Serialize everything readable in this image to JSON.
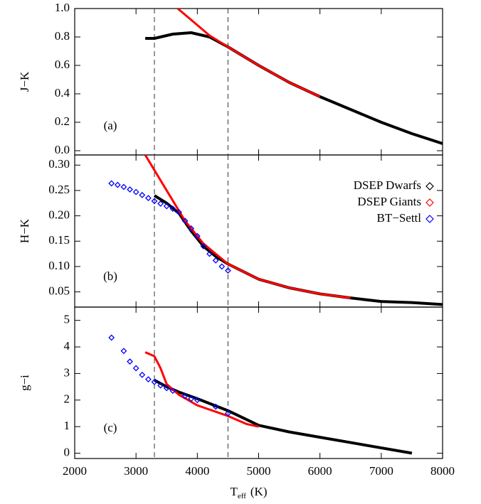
{
  "chart_data": [
    {
      "type": "line",
      "panel_label": "(a)",
      "ylabel": "J−K",
      "xlim": [
        2000,
        8000
      ],
      "ylim": [
        -0.03,
        1.0
      ],
      "yticks": [
        {
          "value": 0,
          "label": "0.0"
        },
        {
          "value": 0.2,
          "label": "0.2"
        },
        {
          "value": 0.4,
          "label": "0.4"
        },
        {
          "value": 0.6,
          "label": "0.6"
        },
        {
          "value": 0.8,
          "label": "0.8"
        },
        {
          "value": 1.0,
          "label": "1.0"
        }
      ],
      "vlines": [
        3300,
        4500
      ],
      "series": [
        {
          "color": "#000000",
          "mode": "line",
          "x": [
            3150,
            3300,
            3400,
            3600,
            3900,
            4200,
            4500,
            5000,
            5500,
            6000,
            6500,
            7000,
            7500,
            8000
          ],
          "values": [
            0.79,
            0.79,
            0.8,
            0.82,
            0.83,
            0.8,
            0.73,
            0.6,
            0.48,
            0.38,
            0.29,
            0.2,
            0.12,
            0.05
          ]
        },
        {
          "color": "#ff0000",
          "mode": "line",
          "x": [
            3680,
            3900,
            4200,
            4500,
            5000,
            5500,
            6000
          ],
          "values": [
            1.0,
            0.92,
            0.81,
            0.73,
            0.6,
            0.48,
            0.38
          ]
        }
      ]
    },
    {
      "type": "line",
      "panel_label": "(b)",
      "ylabel": "H−K",
      "xlim": [
        2000,
        8000
      ],
      "ylim": [
        0.02,
        0.32
      ],
      "yticks": [
        0.05,
        {
          "value": 0.1,
          "label": "0.10"
        },
        0.15,
        {
          "value": 0.2,
          "label": "0.20"
        },
        0.25,
        {
          "value": 0.3,
          "label": "0.30"
        }
      ],
      "vlines": [
        3300,
        4500
      ],
      "legend": "upper right",
      "series": [
        {
          "name": "DSEP Dwarfs",
          "color": "#000000",
          "mode": "line",
          "x": [
            3300,
            3500,
            3700,
            3900,
            4100,
            4300,
            4500,
            5000,
            5500,
            6000,
            6500,
            7000,
            7500,
            8000
          ],
          "values": [
            0.24,
            0.225,
            0.205,
            0.17,
            0.14,
            0.12,
            0.105,
            0.075,
            0.058,
            0.046,
            0.038,
            0.031,
            0.029,
            0.025
          ]
        },
        {
          "name": "DSEP Giants",
          "color": "#ff0000",
          "mode": "line",
          "x": [
            3150,
            3500,
            3800,
            4100,
            4500,
            5000,
            5500,
            6000,
            6500
          ],
          "values": [
            0.32,
            0.25,
            0.19,
            0.145,
            0.105,
            0.075,
            0.058,
            0.046,
            0.038
          ]
        },
        {
          "name": "BT−Settl",
          "color": "#0000ff",
          "mode": "diamond",
          "x": [
            2600,
            2700,
            2800,
            2900,
            3000,
            3100,
            3200,
            3300,
            3400,
            3500,
            3600,
            3700,
            3800,
            3900,
            4000,
            4100,
            4200,
            4300,
            4400,
            4500
          ],
          "values": [
            0.264,
            0.261,
            0.257,
            0.252,
            0.247,
            0.241,
            0.235,
            0.229,
            0.224,
            0.219,
            0.214,
            0.207,
            0.19,
            0.175,
            0.16,
            0.14,
            0.125,
            0.112,
            0.1,
            0.092
          ]
        }
      ]
    },
    {
      "type": "line",
      "panel_label": "(c)",
      "ylabel": "g−i",
      "xlim": [
        2000,
        8000
      ],
      "ylim": [
        -0.2,
        5.5
      ],
      "yticks": [
        0,
        1,
        2,
        3,
        4,
        5
      ],
      "xticks": [
        2000,
        3000,
        4000,
        5000,
        6000,
        7000,
        8000
      ],
      "xlabel": "T",
      "xlabel_sub": "eff",
      "xlabel_unit": "(K)",
      "vlines": [
        3300,
        4500
      ],
      "series": [
        {
          "color": "#000000",
          "mode": "line",
          "x": [
            3300,
            3500,
            3700,
            4000,
            4500,
            5000,
            5500,
            6000,
            6500,
            7000,
            7500
          ],
          "values": [
            2.75,
            2.5,
            2.3,
            2.05,
            1.6,
            1.05,
            0.8,
            0.6,
            0.4,
            0.2,
            0.0
          ]
        },
        {
          "color": "#ff0000",
          "mode": "line",
          "x": [
            3150,
            3300,
            3400,
            3500,
            3700,
            4000,
            4500,
            4800,
            5000
          ],
          "values": [
            3.8,
            3.65,
            3.2,
            2.6,
            2.2,
            1.8,
            1.4,
            1.1,
            1.0
          ]
        },
        {
          "color": "#0000ff",
          "mode": "diamond",
          "x": [
            2600,
            2800,
            2900,
            3000,
            3100,
            3200,
            3300,
            3400,
            3500,
            3600,
            3800,
            3900,
            4000,
            4300,
            4500
          ],
          "values": [
            4.35,
            3.85,
            3.45,
            3.2,
            2.95,
            2.78,
            2.68,
            2.55,
            2.45,
            2.35,
            2.15,
            2.05,
            2.0,
            1.75,
            1.5
          ]
        }
      ]
    }
  ]
}
